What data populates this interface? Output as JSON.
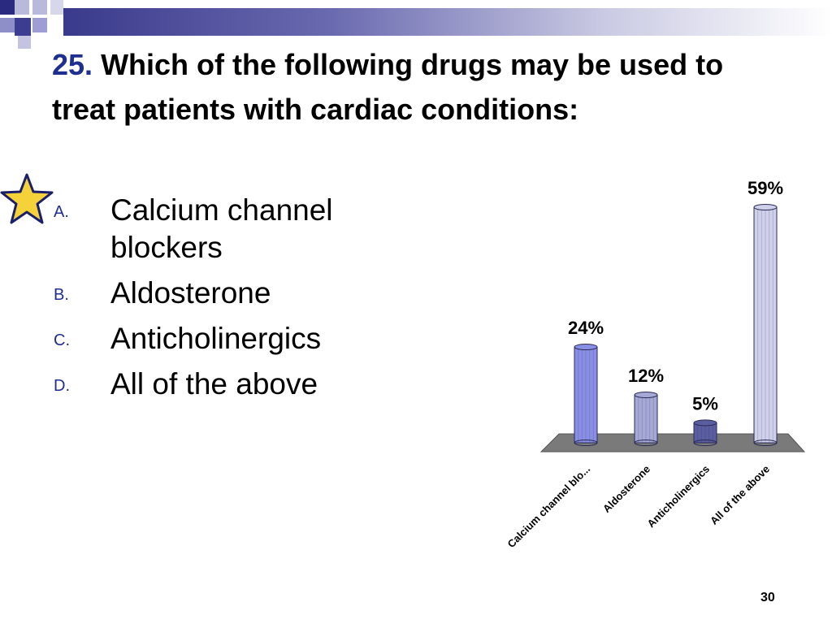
{
  "slide": {
    "question_number": "25.",
    "question_text": "Which of the following drugs may be used to treat patients with cardiac conditions:",
    "page_number": "30"
  },
  "options": [
    {
      "letter": "A.",
      "text": "Calcium channel blockers"
    },
    {
      "letter": "B.",
      "text": "Aldosterone"
    },
    {
      "letter": "C.",
      "text": "Anticholinergics"
    },
    {
      "letter": "D.",
      "text": "All of the above"
    }
  ],
  "decorations": {
    "correct_answer_marker": "star-icon"
  },
  "colors": {
    "title_number": "#1f2f8f",
    "header_bar": "#3a3a8c",
    "floor": "#7a7a7a",
    "star": "#f5d23a"
  },
  "chart_data": {
    "type": "bar",
    "categories": [
      "Calcium channel blo...",
      "Aldosterone",
      "Anticholinergics",
      "All of the above"
    ],
    "values": [
      24,
      12,
      5,
      59
    ],
    "data_labels": [
      "24%",
      "12%",
      "5%",
      "59%"
    ],
    "unit": "%",
    "title": "",
    "xlabel": "",
    "ylabel": "",
    "ylim": [
      0,
      59
    ],
    "grid": false,
    "bar_colors": [
      "#8a8fe6",
      "#a6a8d6",
      "#5a5ea0",
      "#cfd0ea"
    ]
  }
}
